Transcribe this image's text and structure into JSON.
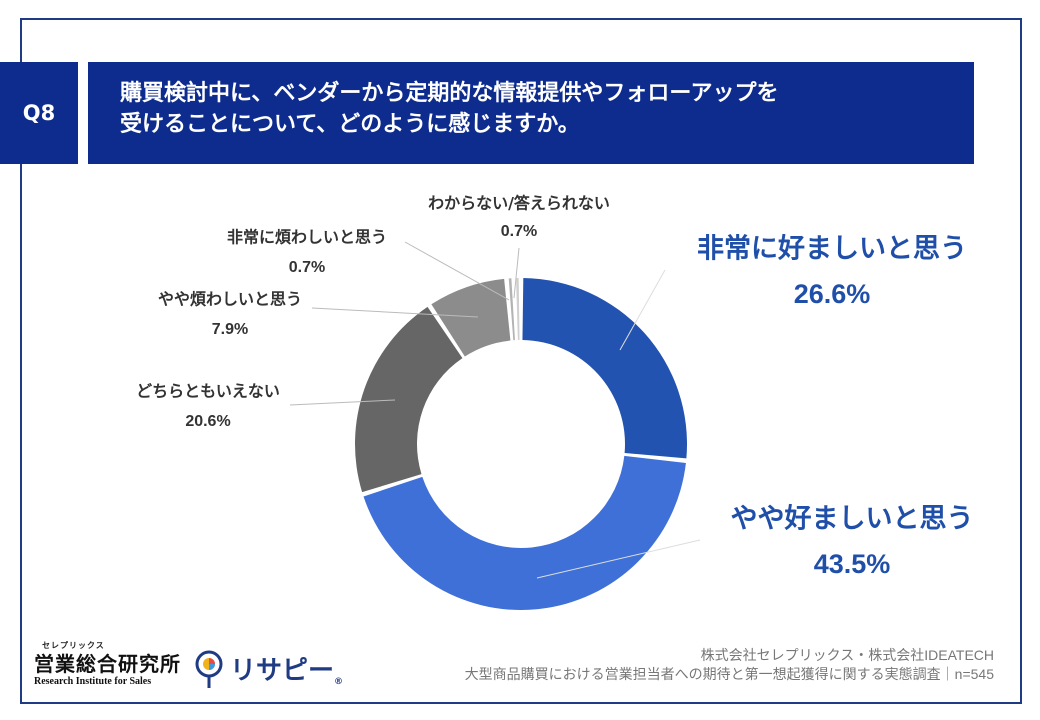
{
  "question": {
    "number": "Q8",
    "line1": "購買検討中に、ベンダーから定期的な情報提供やフォローアップを",
    "line2": "受けることについて、どのように感じますか。"
  },
  "chart_data": {
    "type": "pie",
    "style": "donut",
    "title": "購買検討中に、ベンダーから定期的な情報提供やフォローアップを受けることについて、どのように感じますか。",
    "series": [
      {
        "name": "非常に好ましいと思う",
        "value": 26.6,
        "label": "26.6%",
        "color": "#2353b0"
      },
      {
        "name": "やや好ましいと思う",
        "value": 43.5,
        "label": "43.5%",
        "color": "#3e70d8"
      },
      {
        "name": "どちらともいえない",
        "value": 20.6,
        "label": "20.6%",
        "color": "#666666"
      },
      {
        "name": "やや煩わしいと思う",
        "value": 7.9,
        "label": "7.9%",
        "color": "#8c8c8c"
      },
      {
        "name": "非常に煩わしいと思う",
        "value": 0.7,
        "label": "0.7%",
        "color": "#b3b3b3"
      },
      {
        "name": "わからない/答えられない",
        "value": 0.7,
        "label": "0.7%",
        "color": "#d0d0d0"
      }
    ]
  },
  "footer": {
    "line1": "株式会社セレプリックス・株式会社IDEATECH",
    "line2": "大型商品購買における営業担当者への期待と第一想起獲得に関する実態調査｜n=545"
  },
  "logos": {
    "org_small": "セレプリックス",
    "org_name": "営業総合研究所",
    "org_en": "Research Institute for Sales",
    "brand": "リサピー",
    "brand_mark": "®"
  },
  "colors": {
    "header_bg": "#0e2c8e",
    "accent_text": "#1f4fa8",
    "label_text": "#333333"
  }
}
